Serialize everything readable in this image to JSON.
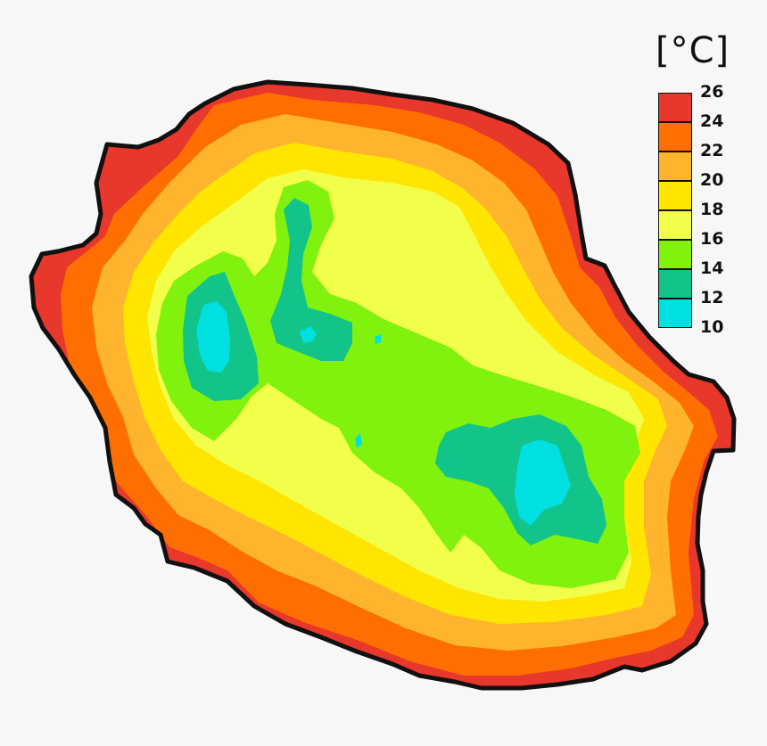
{
  "legend": {
    "unit": "[°C]",
    "ticks": [
      "26",
      "24",
      "22",
      "20",
      "18",
      "16",
      "14",
      "12",
      "10"
    ],
    "bands": [
      {
        "from": 24,
        "to": 26,
        "color": "#e8372b"
      },
      {
        "from": 22,
        "to": 24,
        "color": "#ff6e00"
      },
      {
        "from": 20,
        "to": 22,
        "color": "#ffb42d"
      },
      {
        "from": 18,
        "to": 20,
        "color": "#ffe500"
      },
      {
        "from": 16,
        "to": 18,
        "color": "#f2ff4a"
      },
      {
        "from": 14,
        "to": 16,
        "color": "#80f20d"
      },
      {
        "from": 12,
        "to": 14,
        "color": "#12c48a"
      },
      {
        "from": 10,
        "to": 12,
        "color": "#00e0e0"
      }
    ]
  },
  "colors": {
    "background": "#f7f7f7",
    "coastline": "#111111"
  }
}
